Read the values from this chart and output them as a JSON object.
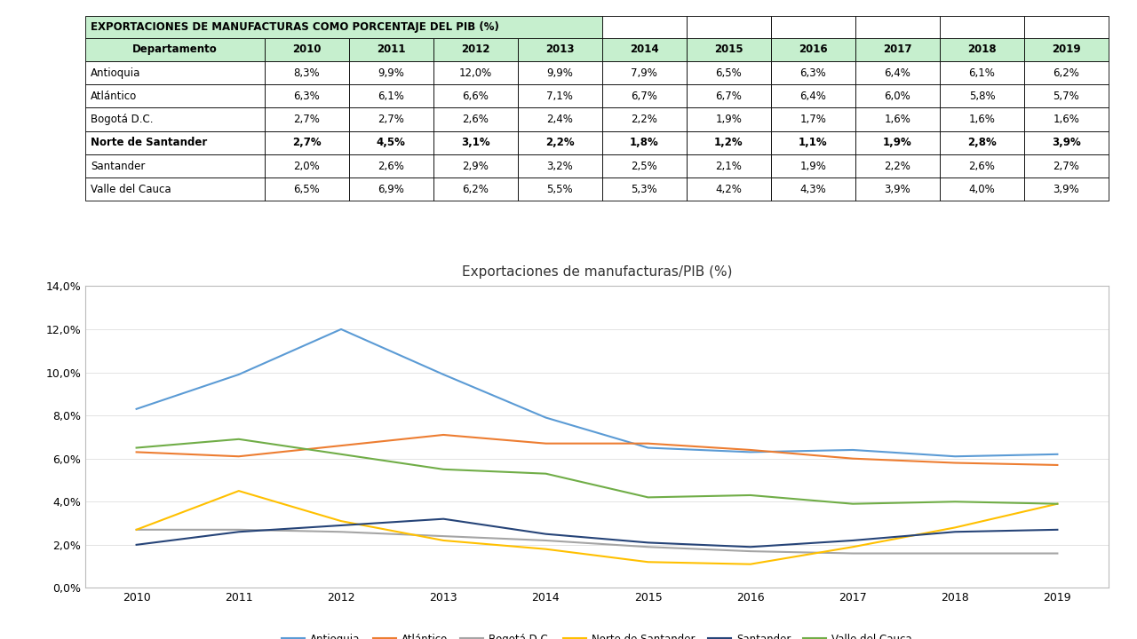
{
  "title_table": "EXPORTACIONES DE MANUFACTURAS COMO PORCENTAJE DEL PIB (%)",
  "years": [
    2010,
    2011,
    2012,
    2013,
    2014,
    2015,
    2016,
    2017,
    2018,
    2019
  ],
  "departments": [
    "Antioquia",
    "Atlántico",
    "Bogotá D.C.",
    "Norte de Santander",
    "Santander",
    "Valle del Cauca"
  ],
  "bold_row": "Norte de Santander",
  "data": {
    "Antioquia": [
      8.3,
      9.9,
      12.0,
      9.9,
      7.9,
      6.5,
      6.3,
      6.4,
      6.1,
      6.2
    ],
    "Atlántico": [
      6.3,
      6.1,
      6.6,
      7.1,
      6.7,
      6.7,
      6.4,
      6.0,
      5.8,
      5.7
    ],
    "Bogotá D.C.": [
      2.7,
      2.7,
      2.6,
      2.4,
      2.2,
      1.9,
      1.7,
      1.6,
      1.6,
      1.6
    ],
    "Norte de Santander": [
      2.7,
      4.5,
      3.1,
      2.2,
      1.8,
      1.2,
      1.1,
      1.9,
      2.8,
      3.9
    ],
    "Santander": [
      2.0,
      2.6,
      2.9,
      3.2,
      2.5,
      2.1,
      1.9,
      2.2,
      2.6,
      2.7
    ],
    "Valle del Cauca": [
      6.5,
      6.9,
      6.2,
      5.5,
      5.3,
      4.2,
      4.3,
      3.9,
      4.0,
      3.9
    ]
  },
  "line_colors": {
    "Antioquia": "#5B9BD5",
    "Atlántico": "#ED7D31",
    "Bogotá D.C.": "#A5A5A5",
    "Norte de Santander": "#FFC000",
    "Santander": "#264478",
    "Valle del Cauca": "#70AD47"
  },
  "chart_title": "Exportaciones de manufacturas/PIB (%)",
  "table_header_bg": "#C6EFCE",
  "table_title_bg": "#C6EFCE",
  "table_row_bg": "#FFFFFF",
  "table_border_color": "#000000",
  "ylim": [
    0,
    14.0
  ],
  "yticks": [
    0.0,
    2.0,
    4.0,
    6.0,
    8.0,
    10.0,
    12.0,
    14.0
  ],
  "outer_bg": "#FFFFFF",
  "chart_area_bg": "#FFFFFF"
}
